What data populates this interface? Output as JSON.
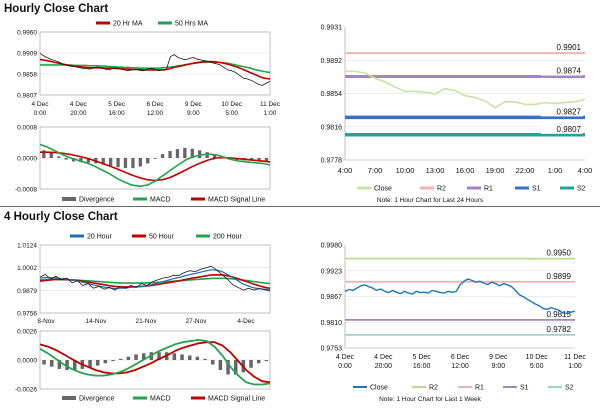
{
  "sections": [
    {
      "title": "Hourly Close Chart"
    },
    {
      "title": "4 Hourly Close Chart"
    }
  ],
  "colors": {
    "price": "#1a1a1a",
    "ma_short": "#c00000",
    "ma_long": "#22a44a",
    "ma_200": "#22a44a",
    "ma_20_4h": "#1f6fb2",
    "macd": "#22a44a",
    "signal": "#c00000",
    "divergence": "#666666",
    "grid": "#dcdcdc",
    "close_hourly": "#c9e3a6",
    "close_4h": "#1f77b4",
    "r2_hourly": "#f2b3b3",
    "r1_hourly": "#9f86c8",
    "s1_hourly": "#3c6ec4",
    "s2_hourly": "#1fa39a",
    "r2_4h": "#bcd98c",
    "r1_4h": "#f0b0b0",
    "s1_4h": "#9f86c8",
    "s2_4h": "#9dd3cf"
  },
  "chart_data": [
    {
      "id": "hourly_price_ma",
      "type": "line",
      "legend": [
        "20 Hr MA",
        "50 Hrs MA"
      ],
      "x_tick_labels": [
        [
          "4 Dec",
          "0:00"
        ],
        [
          "4 Dec",
          "20:00"
        ],
        [
          "5 Dec",
          "16:00"
        ],
        [
          "6 Dec",
          "12:00"
        ],
        [
          "9 Dec",
          "9:00"
        ],
        [
          "10 Dec",
          "5:00"
        ],
        [
          "11 Dec",
          "1:00"
        ]
      ],
      "y_ticks": [
        "0.9960",
        "0.9909",
        "0.9858",
        "0.9807"
      ],
      "ylim": [
        0.9807,
        0.996
      ],
      "series": [
        {
          "name": "Close",
          "values": [
            0.9908,
            0.9902,
            0.9897,
            0.9893,
            0.989,
            0.9887,
            0.9882,
            0.9879,
            0.9877,
            0.9876,
            0.9874,
            0.9872,
            0.9871,
            0.987,
            0.9873,
            0.9875,
            0.9872,
            0.987,
            0.9868,
            0.9871,
            0.9873,
            0.987,
            0.9868,
            0.9866,
            0.9868,
            0.9869,
            0.9867,
            0.9866,
            0.987,
            0.9872,
            0.9869,
            0.9866,
            0.9868,
            0.987,
            0.99,
            0.9905,
            0.9898,
            0.9895,
            0.9893,
            0.9896,
            0.9898,
            0.9894,
            0.9892,
            0.989,
            0.9888,
            0.9885,
            0.9883,
            0.988,
            0.9874,
            0.9868,
            0.9866,
            0.9862,
            0.9855,
            0.9848,
            0.9846,
            0.9843,
            0.9838,
            0.9833,
            0.983,
            0.9836,
            0.984
          ]
        },
        {
          "name": "20 Hr MA",
          "values": [
            0.9893,
            0.9892,
            0.989,
            0.9888,
            0.9886,
            0.9884,
            0.9882,
            0.988,
            0.9878,
            0.9877,
            0.9876,
            0.9875,
            0.9874,
            0.9873,
            0.9873,
            0.9873,
            0.9873,
            0.9872,
            0.9872,
            0.9872,
            0.9871,
            0.9871,
            0.987,
            0.987,
            0.9869,
            0.9869,
            0.9869,
            0.9868,
            0.9868,
            0.9868,
            0.9868,
            0.9868,
            0.9868,
            0.9869,
            0.9871,
            0.9874,
            0.9876,
            0.9878,
            0.988,
            0.9882,
            0.9884,
            0.9886,
            0.9887,
            0.9888,
            0.9888,
            0.9888,
            0.9887,
            0.9886,
            0.9884,
            0.9882,
            0.9879,
            0.9876,
            0.9873,
            0.9869,
            0.9865,
            0.9861,
            0.9857,
            0.9853,
            0.9849,
            0.9847,
            0.9846
          ]
        },
        {
          "name": "50 Hrs MA",
          "values": [
            0.988,
            0.988,
            0.988,
            0.988,
            0.988,
            0.988,
            0.988,
            0.988,
            0.988,
            0.9879,
            0.9879,
            0.9879,
            0.9879,
            0.9878,
            0.9878,
            0.9878,
            0.9877,
            0.9877,
            0.9876,
            0.9876,
            0.9875,
            0.9875,
            0.9874,
            0.9874,
            0.9873,
            0.9873,
            0.9872,
            0.9872,
            0.9872,
            0.9872,
            0.9872,
            0.9872,
            0.9873,
            0.9874,
            0.9875,
            0.9876,
            0.9878,
            0.9879,
            0.9881,
            0.9882,
            0.9884,
            0.9885,
            0.9886,
            0.9887,
            0.9887,
            0.9887,
            0.9887,
            0.9886,
            0.9885,
            0.9884,
            0.9882,
            0.988,
            0.9878,
            0.9876,
            0.9874,
            0.9872,
            0.9869,
            0.9867,
            0.9865,
            0.9863,
            0.9862
          ]
        }
      ]
    },
    {
      "id": "hourly_macd",
      "type": "line",
      "legend": [
        "Divergence",
        "MACD",
        "MACD Signal Line"
      ],
      "y_ticks": [
        "0.0008",
        "0.0000",
        "-0.0008"
      ],
      "ylim": [
        -0.0008,
        0.0008
      ],
      "series": [
        {
          "name": "MACD",
          "values": [
            0.00035,
            0.00028,
            0.00018,
            8e-05,
            0.0,
            -6e-05,
            -0.00012,
            -0.0002,
            -0.0003,
            -0.0004,
            -0.00052,
            -0.00062,
            -0.0007,
            -0.00073,
            -0.0007,
            -0.0006,
            -0.00046,
            -0.00032,
            -0.00018,
            -5e-05,
            3e-05,
            8e-05,
            0.0001,
            8e-05,
            2e-05,
            -4e-05,
            -8e-05,
            -0.0001,
            -0.00012,
            -0.00014,
            -0.00018
          ]
        },
        {
          "name": "MACD Signal Line",
          "values": [
            0.00015,
            0.00015,
            0.00014,
            0.00012,
            9e-05,
            5e-05,
            0.0,
            -6e-05,
            -0.00013,
            -0.0002,
            -0.00028,
            -0.00036,
            -0.00044,
            -0.00051,
            -0.00056,
            -0.00058,
            -0.00056,
            -0.0005,
            -0.00041,
            -0.00031,
            -0.00021,
            -0.00012,
            -5e-05,
            0.0,
            1e-05,
            0.0,
            -2e-05,
            -4e-05,
            -6e-05,
            -8e-05,
            -0.0001
          ]
        },
        {
          "name": "Divergence",
          "values": [
            0.0002,
            0.00013,
            4e-05,
            -4e-05,
            -9e-05,
            -0.00011,
            -0.00012,
            -0.00014,
            -0.00017,
            -0.0002,
            -0.00024,
            -0.00026,
            -0.00026,
            -0.00022,
            -0.00014,
            -2e-05,
            0.0001,
            0.00018,
            0.00023,
            0.00026,
            0.00024,
            0.0002,
            0.00015,
            8e-05,
            1e-05,
            -4e-05,
            -6e-05,
            -6e-05,
            -6e-05,
            -6e-05,
            -8e-05
          ]
        }
      ]
    },
    {
      "id": "hourly_pivots",
      "type": "line",
      "y_ticks": [
        "0.9931",
        "0.9892",
        "0.9854",
        "0.9816",
        "0.9778"
      ],
      "ylim": [
        0.9778,
        0.9931
      ],
      "x_tick_labels": [
        "4:00",
        "7:00",
        "10:00",
        "13:00",
        "16:00",
        "19:00",
        "22:00",
        "1:00",
        "4:00"
      ],
      "legend": [
        "Close",
        "R2",
        "R1",
        "S1",
        "S2"
      ],
      "note": "Note: 1 Hour Chart for Last 24 Hours",
      "series": [
        {
          "name": "Close",
          "values": [
            0.988,
            0.988,
            0.9878,
            0.9872,
            0.9868,
            0.9862,
            0.9857,
            0.9857,
            0.9856,
            0.9854,
            0.986,
            0.9858,
            0.9852,
            0.985,
            0.9846,
            0.9838,
            0.9845,
            0.9845,
            0.9842,
            0.9842,
            0.9844,
            0.9843,
            0.9844,
            0.9845,
            0.9848
          ]
        }
      ],
      "levels": [
        {
          "name": "R2",
          "value": 0.9901,
          "label": "0.9901"
        },
        {
          "name": "R1",
          "value": 0.9874,
          "label": "0.9874"
        },
        {
          "name": "S1",
          "value": 0.9827,
          "label": "0.9827"
        },
        {
          "name": "S2",
          "value": 0.9807,
          "label": "0.9807"
        }
      ]
    },
    {
      "id": "4h_price_ma",
      "type": "line",
      "legend": [
        "20 Hour",
        "50 Hour",
        "200 Hour"
      ],
      "x_tick_labels": [
        "8-Nov",
        "14-Nov",
        "21-Nov",
        "27-Nov",
        "4-Dec"
      ],
      "y_ticks": [
        "1.0124",
        "1.0002",
        "0.9879",
        "0.9756"
      ],
      "ylim": [
        0.9756,
        1.0124
      ],
      "series": [
        {
          "name": "Close",
          "values": [
            0.995,
            0.9965,
            0.994,
            0.9955,
            0.9935,
            0.9945,
            0.992,
            0.993,
            0.9905,
            0.9915,
            0.989,
            0.99,
            0.9885,
            0.9895,
            0.988,
            0.99,
            0.989,
            0.9905,
            0.9895,
            0.9915,
            0.9905,
            0.9925,
            0.9935,
            0.9945,
            0.995,
            0.996,
            0.996,
            0.9975,
            0.9985,
            0.998,
            0.9992,
            1.0,
            1.001,
            0.999,
            0.9965,
            0.994,
            0.991,
            0.9895,
            0.988,
            0.989,
            0.988,
            0.9888,
            0.9882,
            0.9875
          ]
        },
        {
          "name": "20 Hour",
          "values": [
            0.9945,
            0.9948,
            0.9947,
            0.9946,
            0.9942,
            0.994,
            0.9934,
            0.993,
            0.9922,
            0.9916,
            0.9908,
            0.9902,
            0.9896,
            0.9892,
            0.9888,
            0.989,
            0.9891,
            0.9895,
            0.9896,
            0.9901,
            0.9903,
            0.991,
            0.9918,
            0.9926,
            0.9934,
            0.9942,
            0.9948,
            0.9956,
            0.9964,
            0.997,
            0.9977,
            0.9984,
            0.999,
            0.9988,
            0.998,
            0.9966,
            0.9948,
            0.993,
            0.9912,
            0.9902,
            0.9892,
            0.9888,
            0.9884,
            0.9881
          ]
        },
        {
          "name": "50 Hour",
          "values": [
            0.9928,
            0.9932,
            0.9935,
            0.9938,
            0.9938,
            0.9937,
            0.9935,
            0.9932,
            0.9928,
            0.9924,
            0.9919,
            0.9914,
            0.9909,
            0.9904,
            0.99,
            0.9898,
            0.9897,
            0.9897,
            0.9898,
            0.99,
            0.9902,
            0.9906,
            0.991,
            0.9915,
            0.992,
            0.9925,
            0.993,
            0.9936,
            0.9942,
            0.9947,
            0.9952,
            0.9957,
            0.9962,
            0.9963,
            0.9962,
            0.9958,
            0.9951,
            0.9942,
            0.9932,
            0.9922,
            0.9912,
            0.9903,
            0.9895,
            0.9889
          ]
        },
        {
          "name": "200 Hour",
          "values": [
            0.9935,
            0.9936,
            0.9937,
            0.9937,
            0.9937,
            0.9936,
            0.9935,
            0.9934,
            0.9932,
            0.993,
            0.9928,
            0.9926,
            0.9924,
            0.9922,
            0.992,
            0.9919,
            0.9918,
            0.9918,
            0.9918,
            0.9918,
            0.9919,
            0.992,
            0.9922,
            0.9924,
            0.9926,
            0.9928,
            0.993,
            0.9932,
            0.9935,
            0.9937,
            0.9939,
            0.9941,
            0.9943,
            0.9944,
            0.9944,
            0.9943,
            0.9941,
            0.9938,
            0.9934,
            0.993,
            0.9926,
            0.9922,
            0.9918,
            0.9915
          ]
        }
      ]
    },
    {
      "id": "4h_macd",
      "type": "line",
      "legend": [
        "Divergence",
        "MACD",
        "MACD Signal Line"
      ],
      "y_ticks": [
        "0.0026",
        "0.0000",
        "-0.0026"
      ],
      "ylim": [
        -0.0026,
        0.0026
      ],
      "series": [
        {
          "name": "MACD",
          "values": [
            0.001,
            0.0006,
            0.0001,
            -0.0004,
            -0.0008,
            -0.0011,
            -0.0013,
            -0.0014,
            -0.0014,
            -0.0013,
            -0.0011,
            -0.0008,
            -0.0004,
            0.0,
            0.0004,
            0.0008,
            0.0011,
            0.0014,
            0.0016,
            0.0017,
            0.0018,
            0.0017,
            0.0012,
            0.0004,
            -0.0006,
            -0.0014,
            -0.002,
            -0.0022,
            -0.0022,
            -0.0021
          ]
        },
        {
          "name": "MACD Signal Line",
          "values": [
            0.0014,
            0.0012,
            0.0009,
            0.0005,
            0.0001,
            -0.0003,
            -0.0006,
            -0.0009,
            -0.0011,
            -0.0012,
            -0.0012,
            -0.0011,
            -0.0009,
            -0.0006,
            -0.0003,
            0.0001,
            0.0004,
            0.0008,
            0.0011,
            0.0013,
            0.0015,
            0.0016,
            0.0016,
            0.0013,
            0.0007,
            -0.0001,
            -0.0009,
            -0.0015,
            -0.0019,
            -0.002
          ]
        },
        {
          "name": "Divergence",
          "values": [
            -0.0004,
            -0.0006,
            -0.0008,
            -0.0009,
            -0.0009,
            -0.0008,
            -0.0007,
            -0.0005,
            -0.0003,
            -0.0001,
            0.0001,
            0.0003,
            0.0005,
            0.0006,
            0.0007,
            0.0007,
            0.0007,
            0.0006,
            0.0005,
            0.0004,
            0.0003,
            0.0001,
            -0.0004,
            -0.0009,
            -0.0013,
            -0.0013,
            -0.0011,
            -0.0007,
            -0.0003,
            -0.0001
          ]
        }
      ]
    },
    {
      "id": "4h_pivots",
      "type": "line",
      "y_ticks": [
        "0.9980",
        "0.9923",
        "0.9867",
        "0.9810",
        "0.9753"
      ],
      "ylim": [
        0.9753,
        0.998
      ],
      "x_tick_labels": [
        [
          "4 Dec",
          "0:00"
        ],
        [
          "4 Dec",
          "20:00"
        ],
        [
          "5 Dec",
          "16:00"
        ],
        [
          "6 Dec",
          "12:00"
        ],
        [
          "9 Dec",
          "9:00"
        ],
        [
          "10 Dec",
          "5:00"
        ],
        [
          "11 Dec",
          "1:00"
        ]
      ],
      "legend": [
        "Close",
        "R2",
        "R1",
        "S1",
        "S2"
      ],
      "note": "Note: 1 Hour Chart for Last 1 Week",
      "series": [
        {
          "name": "Close",
          "values": [
            0.9878,
            0.9882,
            0.988,
            0.9885,
            0.989,
            0.9892,
            0.9888,
            0.9885,
            0.988,
            0.9883,
            0.9878,
            0.9875,
            0.988,
            0.9876,
            0.9873,
            0.9878,
            0.9874,
            0.9872,
            0.9878,
            0.9875,
            0.9876,
            0.9874,
            0.988,
            0.9878,
            0.9875,
            0.9874,
            0.9878,
            0.9876,
            0.9877,
            0.9892,
            0.99,
            0.9905,
            0.9902,
            0.9898,
            0.99,
            0.9896,
            0.9893,
            0.9898,
            0.9895,
            0.989,
            0.9895,
            0.9892,
            0.9888,
            0.988,
            0.987,
            0.9866,
            0.986,
            0.9855,
            0.985,
            0.9846,
            0.984,
            0.9838,
            0.9842,
            0.9839,
            0.9836,
            0.983,
            0.9829,
            0.9832,
            0.9834
          ]
        }
      ],
      "levels": [
        {
          "name": "R2",
          "value": 0.995,
          "label": "0.9950"
        },
        {
          "name": "R1",
          "value": 0.9899,
          "label": "0.9899"
        },
        {
          "name": "S1",
          "value": 0.9815,
          "label": "0.9815"
        },
        {
          "name": "S2",
          "value": 0.9782,
          "label": "0.9782"
        }
      ]
    }
  ]
}
